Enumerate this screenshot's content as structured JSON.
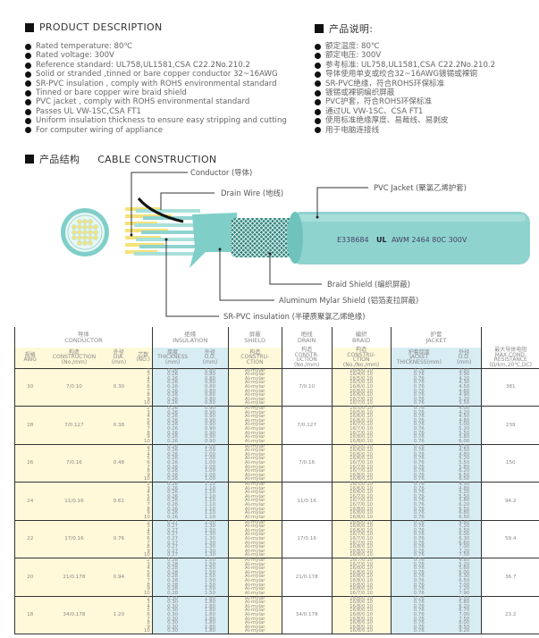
{
  "desc_en": {
    "title": "PRODUCT DESCRIPTION",
    "items": [
      "Rated temperature: 80℃",
      "Rated voltage: 300V",
      "Reference standard: UL758,UL1581,CSA C22.2No.210.2",
      "Solid or stranded ,tinned or bare copper conductor 32~16AWG",
      "SR-PVC insulation , comply with ROHS environmental standard",
      "Tinned or bare copper wire braid shield",
      "PVC jacket , comply with ROHS environmental standard",
      "Passes UL VW-1SC,CSA FT1",
      "Uniform insulation thickness to ensure easy stripping and cutting",
      "For computer wiring of appliance"
    ]
  },
  "desc_cn": {
    "title": "产品说明:",
    "items": [
      "额定温度: 80℃",
      "额定电压: 300V",
      "参考标准: UL758,UL1581,CSA C22.2No.210.2",
      "导体使用单支或绞合32~16AWG镀锡或裸铜",
      "SR-PVC绝缘，符合ROHS环保标准",
      "镀锡或裸铜编织屏蔽",
      "PVC护套，符合ROHS环保标准",
      "通过UL VW-1SC、CSA FT1",
      "使用标准绝缘厚度、易裁线、易剥皮",
      "用于电脑连接线"
    ]
  },
  "construction": {
    "title_cn": "产品结构",
    "title_en": "CABLE CONSTRUCTION",
    "labels": {
      "conductor": "Conductor (导体)",
      "drain": "Drain Wire (地线)",
      "jacket": "PVC Jacket (聚氯乙烯护套)",
      "braid": "Braid Shield (编织屏蔽)",
      "mylar": "Aluminum Mylar Shield (铝箔麦拉屏蔽)",
      "insulation": "SR-PVC insulation (半硬质聚氯乙烯绝缘)"
    },
    "marking_left": "E338684",
    "marking_logo": "UL",
    "marking_right": "AWM 2464 80C 300V",
    "colors": {
      "jacket": "#8fd3cf",
      "conductor": "#f5e27a",
      "drain": "#111111"
    }
  },
  "table": {
    "groups": [
      {
        "cn": "导体",
        "en": "CONDUCTOR"
      },
      {
        "cn": "绝缘",
        "en": "INSULATION"
      },
      {
        "cn": "屏蔽",
        "en": "SHIELD"
      },
      {
        "cn": "地线",
        "en": "DRAIN"
      },
      {
        "cn": "编织",
        "en": "BRAID"
      },
      {
        "cn": "护套",
        "en": "JACKET"
      }
    ],
    "cols": [
      "规格\nAWG",
      "构造\nCONSTRUCTION\n(No./mm)",
      "外径\nDIA.\n(mm)",
      "芯数\n(NO.)",
      "厚度\nTHICKNESS\n(mm)",
      "外径\nO.D.\n(mm)",
      "构造\nCONSTRU-\nCTION",
      "构造\nCONSTR-\nUCTION\n(No./mm)",
      "构造\nCONSTRU-\nCTION\n(No./No./mm)",
      "护套厚度\nJACKET\nTHICKNESS(mm)",
      "外径\nO.D.\n(mm)",
      "最大导体电阻\nMAX.COND.\nRESISTANCE\n(Ω/km,20℃,DC)"
    ],
    "cores": "2\n3\n4\n5\n6\n7\n8\n9\n10",
    "shield": "Al-mylar",
    "rows": [
      {
        "awg": "30",
        "cons": "7/0.10",
        "dia": "0.30",
        "ins_t": "0.26",
        "ins_od": "0.80",
        "drain": "7/0.10",
        "braid": [
          "16/4/0.10",
          "16/4/0.10",
          "16/5/0.10",
          "16/5/0.10",
          "16/6/0.10",
          "16/6/0.10",
          "16/6/0.10",
          "16/7/0.10",
          "16/7/0.10"
        ],
        "jt": "0.76",
        "jod": [
          "3.80",
          "3.90",
          "4.20",
          "4.30",
          "4.50",
          "4.60",
          "4.90",
          "5.20",
          "5.50"
        ],
        "res": "381"
      },
      {
        "awg": "28",
        "cons": "7/0.127",
        "dia": "0.38",
        "ins_t": "0.26",
        "ins_od": "0.90",
        "drain": "7/0.127",
        "braid": [
          "16/5/0.10",
          "16/5/0.10",
          "16/6/0.10",
          "16/6/0.10",
          "16/7/0.10",
          "16/7/0.10",
          "16/7/0.10",
          "16/8/0.10",
          "16/8/0.10"
        ],
        "jt": "0.76",
        "jod": [
          "4.00",
          "4.20",
          "4.50",
          "4.80",
          "5.00",
          "5.20",
          "5.50",
          "5.80",
          "6.00"
        ],
        "res": "239"
      },
      {
        "awg": "26",
        "cons": "7/0.16",
        "dia": "0.48",
        "ins_t": "0.26",
        "ins_od": "1.00",
        "drain": "7/0.16",
        "braid": [
          "16/5/0.10",
          "16/6/0.10",
          "16/6/0.10",
          "16/6/0.10",
          "16/7/0.10",
          "16/7/0.10",
          "16/7/0.10",
          "16/8/0.10",
          "16/8/0.10"
        ],
        "jt": "0.76",
        "jod": [
          "4.20",
          "4.50",
          "4.80",
          "5.20",
          "5.50",
          "5.80",
          "6.20",
          "6.50",
          "6.50"
        ],
        "res": "150"
      },
      {
        "awg": "24",
        "cons": "11/0.16",
        "dia": "0.61",
        "ins_t": "0.26",
        "ins_od": "1.10",
        "drain": "11/0.16",
        "braid": [
          "16/5/0.10",
          "16/6/0.10",
          "16/6/0.10",
          "16/7/0.10",
          "16/7/0.10",
          "16/7/0.10",
          "16/8/0.10",
          "16/8/0.10",
          "16/8/0.10"
        ],
        "jt": "0.76",
        "jod": [
          "4.50",
          "4.80",
          "5.20",
          "5.50",
          "5.80",
          "6.20",
          "6.50",
          "6.80",
          "6.50"
        ],
        "res": "94.2"
      },
      {
        "awg": "22",
        "cons": "17/0.16",
        "dia": "0.76",
        "ins_t": "0.27",
        "ins_od": "1.30",
        "drain": "17/0.16",
        "braid": [
          "16/6/0.10",
          "16/6/0.10",
          "16/6/0.10",
          "16/7/0.10",
          "16/7/0.10",
          "16/7/0.10",
          "16/8/0.10",
          "16/8/0.10",
          "16/8/0.10"
        ],
        "jt": "0.76",
        "jod": [
          "4.80",
          "5.20",
          "5.50",
          "6.00",
          "6.30",
          "6.60",
          "7.00",
          "7.20",
          "7.50"
        ],
        "res": "59.4"
      },
      {
        "awg": "20",
        "cons": "21/0.178",
        "dia": "0.94",
        "ins_t": "0.28",
        "ins_od": "1.50",
        "drain": "21/0.178",
        "braid": [
          "16/7/0.10",
          "16/7/0.10",
          "16/8/0.10",
          "16/8/0.10",
          "16/8/0.10",
          "16/8/0.10",
          "16/8/0.10",
          "16/8/0.10",
          "16/7/0.10"
        ],
        "jt": "0.76",
        "jod": [
          "4.80",
          "5.20",
          "5.60",
          "6.00",
          "6.30",
          "6.50",
          "7.00",
          "7.20",
          "7.90"
        ],
        "res": "36.7"
      },
      {
        "awg": "18",
        "cons": "34/0.178",
        "dia": "1.20",
        "ins_t": "0.30",
        "ins_od": "1.80",
        "drain": "34/0.178",
        "braid": [
          "16/8/0.10",
          "16/8/0.10",
          "16/8/0.10",
          "16/8/0.10",
          "16/8/0.10",
          "16/8/0.10",
          "16/8/0.10",
          "16/8/0.10",
          "16/8/0.10"
        ],
        "jt": "0.76",
        "jod": [
          "5.50",
          "5.80",
          "6.20",
          "6.70",
          "7.00",
          "7.50",
          "8.00",
          "8.50",
          "9.20"
        ],
        "res": "23.2"
      }
    ]
  }
}
